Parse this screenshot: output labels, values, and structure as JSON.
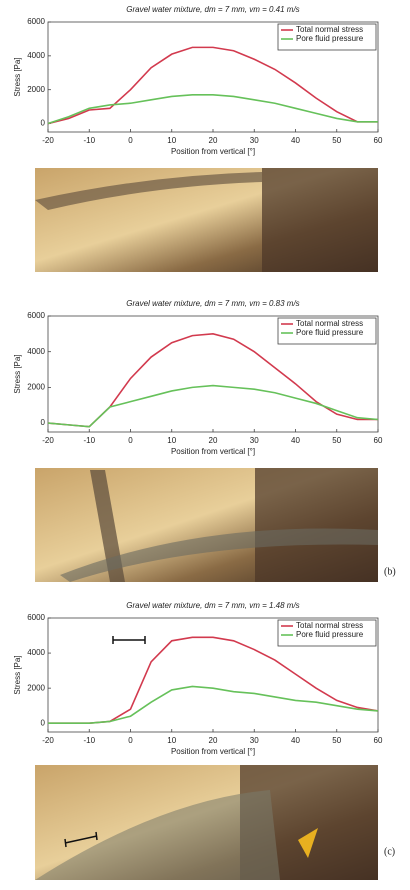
{
  "chart_data": [
    {
      "type": "line",
      "title": "Gravel water mixture, dm = 7 mm, vm = 0.41 m/s",
      "x_label": "Position from vertical [°]",
      "y_label": "Stress [Pa]",
      "x": [
        -20,
        -15,
        -10,
        -5,
        0,
        5,
        10,
        15,
        20,
        25,
        30,
        35,
        40,
        45,
        50,
        55,
        60
      ],
      "series": [
        {
          "name": "Total normal stress",
          "color": "#d23a4e",
          "values": [
            0,
            300,
            800,
            900,
            2000,
            3300,
            4100,
            4500,
            4500,
            4300,
            3800,
            3200,
            2400,
            1500,
            700,
            100,
            100
          ]
        },
        {
          "name": "Pore fluid pressure",
          "color": "#66c15a",
          "values": [
            0,
            400,
            900,
            1100,
            1200,
            1400,
            1600,
            1700,
            1700,
            1600,
            1400,
            1200,
            900,
            600,
            300,
            100,
            100
          ]
        }
      ],
      "xlim": [
        -20,
        60
      ],
      "xticks": [
        -20,
        -10,
        0,
        10,
        20,
        30,
        40,
        50,
        60
      ],
      "ylim": [
        -500,
        6000
      ],
      "yticks": [
        0,
        2000,
        4000,
        6000
      ],
      "legend": "upper right"
    },
    {
      "type": "line",
      "title": "Gravel water mixture, dm = 7 mm, vm = 0.83 m/s",
      "x_label": "Position from vertical [°]",
      "y_label": "Stress [Pa]",
      "panel_label": "(b)",
      "x": [
        -20,
        -15,
        -10,
        -5,
        0,
        5,
        10,
        15,
        20,
        25,
        30,
        35,
        40,
        45,
        50,
        55,
        60
      ],
      "series": [
        {
          "name": "Total normal stress",
          "color": "#d23a4e",
          "values": [
            0,
            -100,
            -200,
            900,
            2500,
            3700,
            4500,
            4900,
            5000,
            4700,
            4000,
            3100,
            2200,
            1200,
            500,
            200,
            200
          ]
        },
        {
          "name": "Pore fluid pressure",
          "color": "#66c15a",
          "values": [
            0,
            -100,
            -200,
            900,
            1200,
            1500,
            1800,
            2000,
            2100,
            2000,
            1900,
            1700,
            1400,
            1100,
            700,
            300,
            200
          ]
        }
      ],
      "xlim": [
        -20,
        60
      ],
      "xticks": [
        -20,
        -10,
        0,
        10,
        20,
        30,
        40,
        50,
        60
      ],
      "ylim": [
        -500,
        6000
      ],
      "yticks": [
        0,
        2000,
        4000,
        6000
      ],
      "legend": "upper right"
    },
    {
      "type": "line",
      "title": "Gravel water mixture, dm = 7 mm, vm = 1.48 m/s",
      "x_label": "Position from vertical [°]",
      "y_label": "Stress [Pa]",
      "panel_label": "(c)",
      "x": [
        -20,
        -15,
        -10,
        -5,
        0,
        5,
        10,
        15,
        20,
        25,
        30,
        35,
        40,
        45,
        50,
        55,
        60
      ],
      "series": [
        {
          "name": "Total normal stress",
          "color": "#d23a4e",
          "values": [
            0,
            0,
            0,
            100,
            800,
            3500,
            4700,
            4900,
            4900,
            4700,
            4200,
            3600,
            2800,
            2000,
            1300,
            900,
            700
          ]
        },
        {
          "name": "Pore fluid pressure",
          "color": "#66c15a",
          "values": [
            0,
            0,
            0,
            100,
            400,
            1200,
            1900,
            2100,
            2000,
            1800,
            1700,
            1500,
            1300,
            1200,
            1000,
            800,
            700
          ]
        }
      ],
      "xlim": [
        -20,
        60
      ],
      "xticks": [
        -20,
        -10,
        0,
        10,
        20,
        30,
        40,
        50,
        60
      ],
      "ylim": [
        -500,
        6000
      ],
      "yticks": [
        0,
        2000,
        4000,
        6000
      ],
      "legend": "upper right"
    }
  ]
}
